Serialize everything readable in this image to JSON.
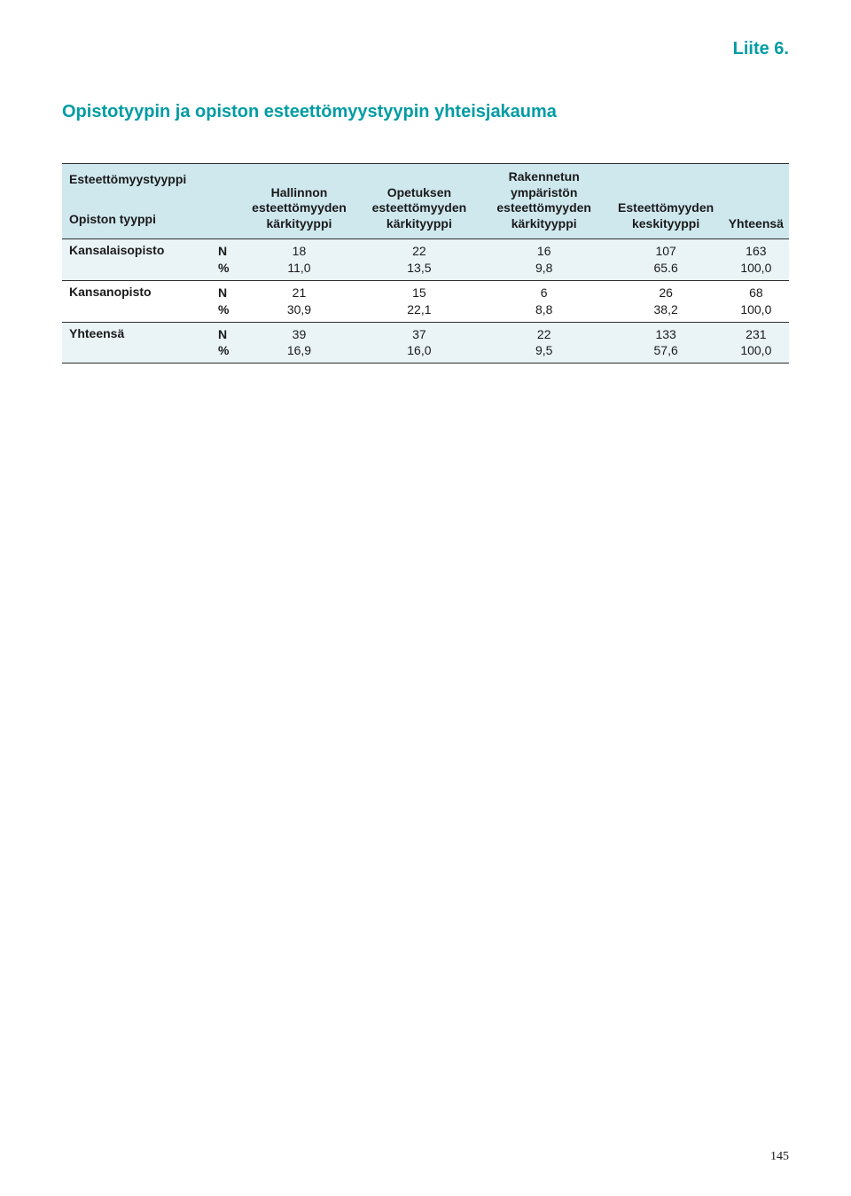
{
  "appendix_label": "Liite 6.",
  "title": "Opistotyypin ja opiston esteettömyystyypin yhteisjakauma",
  "page_number": "145",
  "colors": {
    "accent": "#009ca3",
    "header_band": "#cfe8ee",
    "light_band": "#eaf4f7",
    "rule": "#2d2d2d",
    "text": "#1a1a1a",
    "background": "#ffffff"
  },
  "table": {
    "stub_top": "Esteettömyystyyppi",
    "stub_bottom": "Opiston tyyppi",
    "columns": [
      "Hallinnon esteettömyyden kärkityyppi",
      "Opetuksen esteettömyyden kärkityyppi",
      "Rakennetun ympäristön esteettömyyden kärkityyppi",
      "Esteettömyyden keskityyppi",
      "Yhteensä"
    ],
    "metric_labels": [
      "N",
      "%"
    ],
    "rows": [
      {
        "label": "Kansalaisopisto",
        "band": "light",
        "n": [
          "18",
          "22",
          "16",
          "107",
          "163"
        ],
        "pct": [
          "11,0",
          "13,5",
          "9,8",
          "65.6",
          "100,0"
        ]
      },
      {
        "label": "Kansanopisto",
        "band": "white",
        "n": [
          "21",
          "15",
          "6",
          "26",
          "68"
        ],
        "pct": [
          "30,9",
          "22,1",
          "8,8",
          "38,2",
          "100,0"
        ]
      },
      {
        "label": "Yhteensä",
        "band": "light",
        "n": [
          "39",
          "37",
          "22",
          "133",
          "231"
        ],
        "pct": [
          "16,9",
          "16,0",
          "9,5",
          "57,6",
          "100,0"
        ]
      }
    ]
  }
}
